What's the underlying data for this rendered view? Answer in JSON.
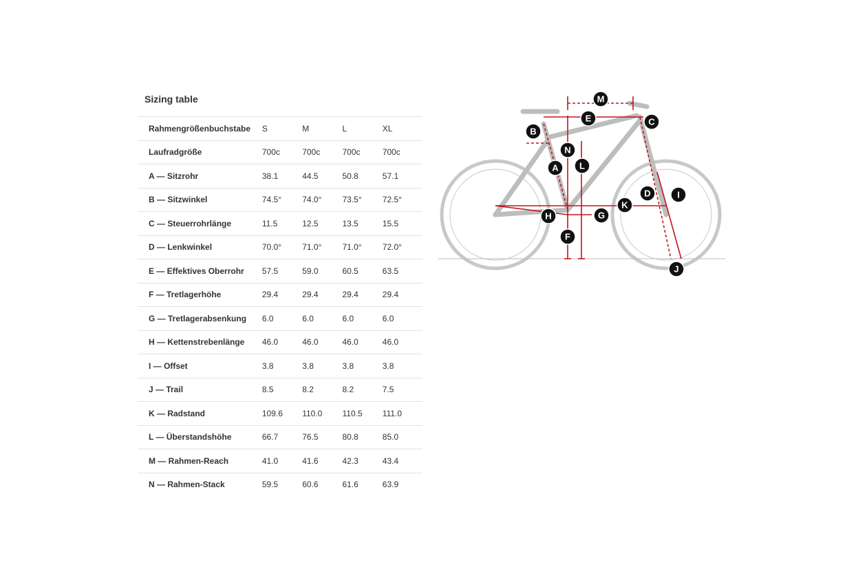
{
  "table": {
    "title": "Sizing table",
    "header": [
      "Rahmengrößenbuchstabe",
      "S",
      "M",
      "L",
      "XL"
    ],
    "rows": [
      [
        "Laufradgröße",
        "700c",
        "700c",
        "700c",
        "700c"
      ],
      [
        "A — Sitzrohr",
        "38.1",
        "44.5",
        "50.8",
        "57.1"
      ],
      [
        "B — Sitzwinkel",
        "74.5°",
        "74.0°",
        "73.5°",
        "72.5°"
      ],
      [
        "C — Steuerrohrlänge",
        "11.5",
        "12.5",
        "13.5",
        "15.5"
      ],
      [
        "D — Lenkwinkel",
        "70.0°",
        "71.0°",
        "71.0°",
        "72.0°"
      ],
      [
        "E — Effektives Oberrohr",
        "57.5",
        "59.0",
        "60.5",
        "63.5"
      ],
      [
        "F — Tretlagerhöhe",
        "29.4",
        "29.4",
        "29.4",
        "29.4"
      ],
      [
        "G — Tretlagerabsenkung",
        "6.0",
        "6.0",
        "6.0",
        "6.0"
      ],
      [
        "H — Kettenstrebenlänge",
        "46.0",
        "46.0",
        "46.0",
        "46.0"
      ],
      [
        "I — Offset",
        "3.8",
        "3.8",
        "3.8",
        "3.8"
      ],
      [
        "J — Trail",
        "8.5",
        "8.2",
        "8.2",
        "7.5"
      ],
      [
        "K — Radstand",
        "109.6",
        "110.0",
        "110.5",
        "111.0"
      ],
      [
        "L — Überstandshöhe",
        "66.7",
        "76.5",
        "80.8",
        "85.0"
      ],
      [
        "M — Rahmen-Reach",
        "41.0",
        "41.6",
        "42.3",
        "43.4"
      ],
      [
        "N — Rahmen-Stack",
        "59.5",
        "60.6",
        "61.6",
        "63.9"
      ]
    ]
  },
  "diagram": {
    "labels": [
      "M",
      "E",
      "C",
      "B",
      "N",
      "A",
      "L",
      "D",
      "I",
      "K",
      "H",
      "G",
      "F",
      "J"
    ]
  }
}
